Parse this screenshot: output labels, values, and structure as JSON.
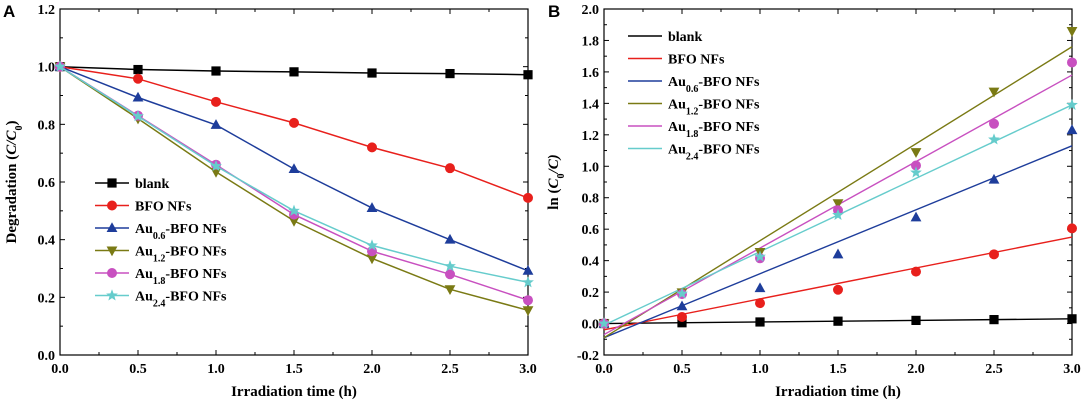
{
  "chart_data": [
    {
      "panel": "A",
      "type": "line",
      "xlabel": "Irradiation time (h)",
      "ylabel_parts": [
        "Degradation (",
        "C/C",
        "0",
        ")"
      ],
      "xlim": [
        0,
        3
      ],
      "ylim": [
        0,
        1.2
      ],
      "xticks": [
        "0.0",
        "0.5",
        "1.0",
        "1.5",
        "2.0",
        "2.5",
        "3.0"
      ],
      "yticks": [
        "0.0",
        "0.2",
        "0.4",
        "0.6",
        "0.8",
        "1.0",
        "1.2"
      ],
      "legend_position": "bottom-left",
      "x": [
        0,
        0.5,
        1.0,
        1.5,
        2.0,
        2.5,
        3.0
      ],
      "series": [
        {
          "id": "blank",
          "name": "blank",
          "label": [
            "blank",
            "",
            ""
          ],
          "color": "#000000",
          "marker": "square",
          "values": [
            1.0,
            0.99,
            0.985,
            0.982,
            0.978,
            0.976,
            0.972
          ]
        },
        {
          "id": "bfo",
          "name": "BFO NFs",
          "label": [
            "BFO NFs",
            "",
            ""
          ],
          "color": "#e8201c",
          "marker": "circle",
          "values": [
            1.0,
            0.958,
            0.878,
            0.805,
            0.72,
            0.648,
            0.545
          ]
        },
        {
          "id": "au06",
          "name": "Au0.6-BFO NFs",
          "label": [
            "Au",
            "0.6",
            "-BFO NFs"
          ],
          "color": "#1e3d9b",
          "marker": "triangle-up",
          "values": [
            1.0,
            0.893,
            0.798,
            0.645,
            0.51,
            0.4,
            0.292
          ]
        },
        {
          "id": "au12",
          "name": "Au1.2-BFO NFs",
          "label": [
            "Au",
            "1.2",
            "-BFO NFs"
          ],
          "color": "#7a7a14",
          "marker": "triangle-down",
          "values": [
            1.0,
            0.82,
            0.635,
            0.465,
            0.335,
            0.228,
            0.155
          ]
        },
        {
          "id": "au18",
          "name": "Au1.8-BFO NFs",
          "label": [
            "Au",
            "1.8",
            "-BFO NFs"
          ],
          "color": "#c850c0",
          "marker": "circle",
          "values": [
            1.0,
            0.83,
            0.66,
            0.487,
            0.36,
            0.28,
            0.19
          ]
        },
        {
          "id": "au24",
          "name": "Au2.4-BFO NFs",
          "label": [
            "Au",
            "2.4",
            "-BFO NFs"
          ],
          "color": "#66cccc",
          "marker": "star",
          "values": [
            1.0,
            0.828,
            0.655,
            0.5,
            0.38,
            0.308,
            0.252
          ]
        }
      ]
    },
    {
      "panel": "B",
      "type": "scatter",
      "xlabel": "Irradiation time (h)",
      "ylabel_parts": [
        "ln (",
        "C",
        "0",
        "/C)"
      ],
      "xlim": [
        0,
        3
      ],
      "ylim": [
        -0.2,
        2.0
      ],
      "xticks": [
        "0.0",
        "0.5",
        "1.0",
        "1.5",
        "2.0",
        "2.5",
        "3.0"
      ],
      "yticks": [
        "-0.2",
        "0.0",
        "0.2",
        "0.4",
        "0.6",
        "0.8",
        "1.0",
        "1.2",
        "1.4",
        "1.6",
        "1.8",
        "2.0"
      ],
      "legend_position": "top-left",
      "x": [
        0,
        0.5,
        1.0,
        1.5,
        2.0,
        2.5,
        3.0
      ],
      "series": [
        {
          "id": "blank",
          "name": "blank",
          "label": [
            "blank",
            "",
            ""
          ],
          "color": "#000000",
          "marker": "square",
          "values": [
            0.0,
            0.005,
            0.01,
            0.015,
            0.02,
            0.025,
            0.03
          ],
          "fit": [
            0.0,
            0.03
          ]
        },
        {
          "id": "bfo",
          "name": "BFO NFs",
          "label": [
            "BFO NFs",
            "",
            ""
          ],
          "color": "#e8201c",
          "marker": "circle",
          "values": [
            0.0,
            0.042,
            0.13,
            0.215,
            0.33,
            0.44,
            0.605
          ],
          "fit": [
            -0.04,
            0.55
          ]
        },
        {
          "id": "au06",
          "name": "Au0.6-BFO NFs",
          "label": [
            "Au",
            "0.6",
            "-BFO NFs"
          ],
          "color": "#1e3d9b",
          "marker": "triangle-up",
          "values": [
            0.0,
            0.11,
            0.225,
            0.44,
            0.675,
            0.915,
            1.23
          ],
          "fit": [
            -0.09,
            1.13
          ]
        },
        {
          "id": "au12",
          "name": "Au1.2-BFO NFs",
          "label": [
            "Au",
            "1.2",
            "-BFO NFs"
          ],
          "color": "#7a7a14",
          "marker": "triangle-down",
          "values": [
            0.0,
            0.198,
            0.455,
            0.765,
            1.09,
            1.475,
            1.86
          ],
          "fit": [
            -0.09,
            1.76
          ]
        },
        {
          "id": "au18",
          "name": "Au1.8-BFO NFs",
          "label": [
            "Au",
            "1.8",
            "-BFO NFs"
          ],
          "color": "#c850c0",
          "marker": "circle",
          "values": [
            0.0,
            0.187,
            0.415,
            0.72,
            1.005,
            1.27,
            1.66
          ],
          "fit": [
            -0.07,
            1.58
          ]
        },
        {
          "id": "au24",
          "name": "Au2.4-BFO NFs",
          "label": [
            "Au",
            "2.4",
            "-BFO NFs"
          ],
          "color": "#66cccc",
          "marker": "star",
          "values": [
            0.0,
            0.19,
            0.425,
            0.69,
            0.96,
            1.17,
            1.39
          ],
          "fit": [
            -0.01,
            1.39
          ]
        }
      ]
    }
  ]
}
